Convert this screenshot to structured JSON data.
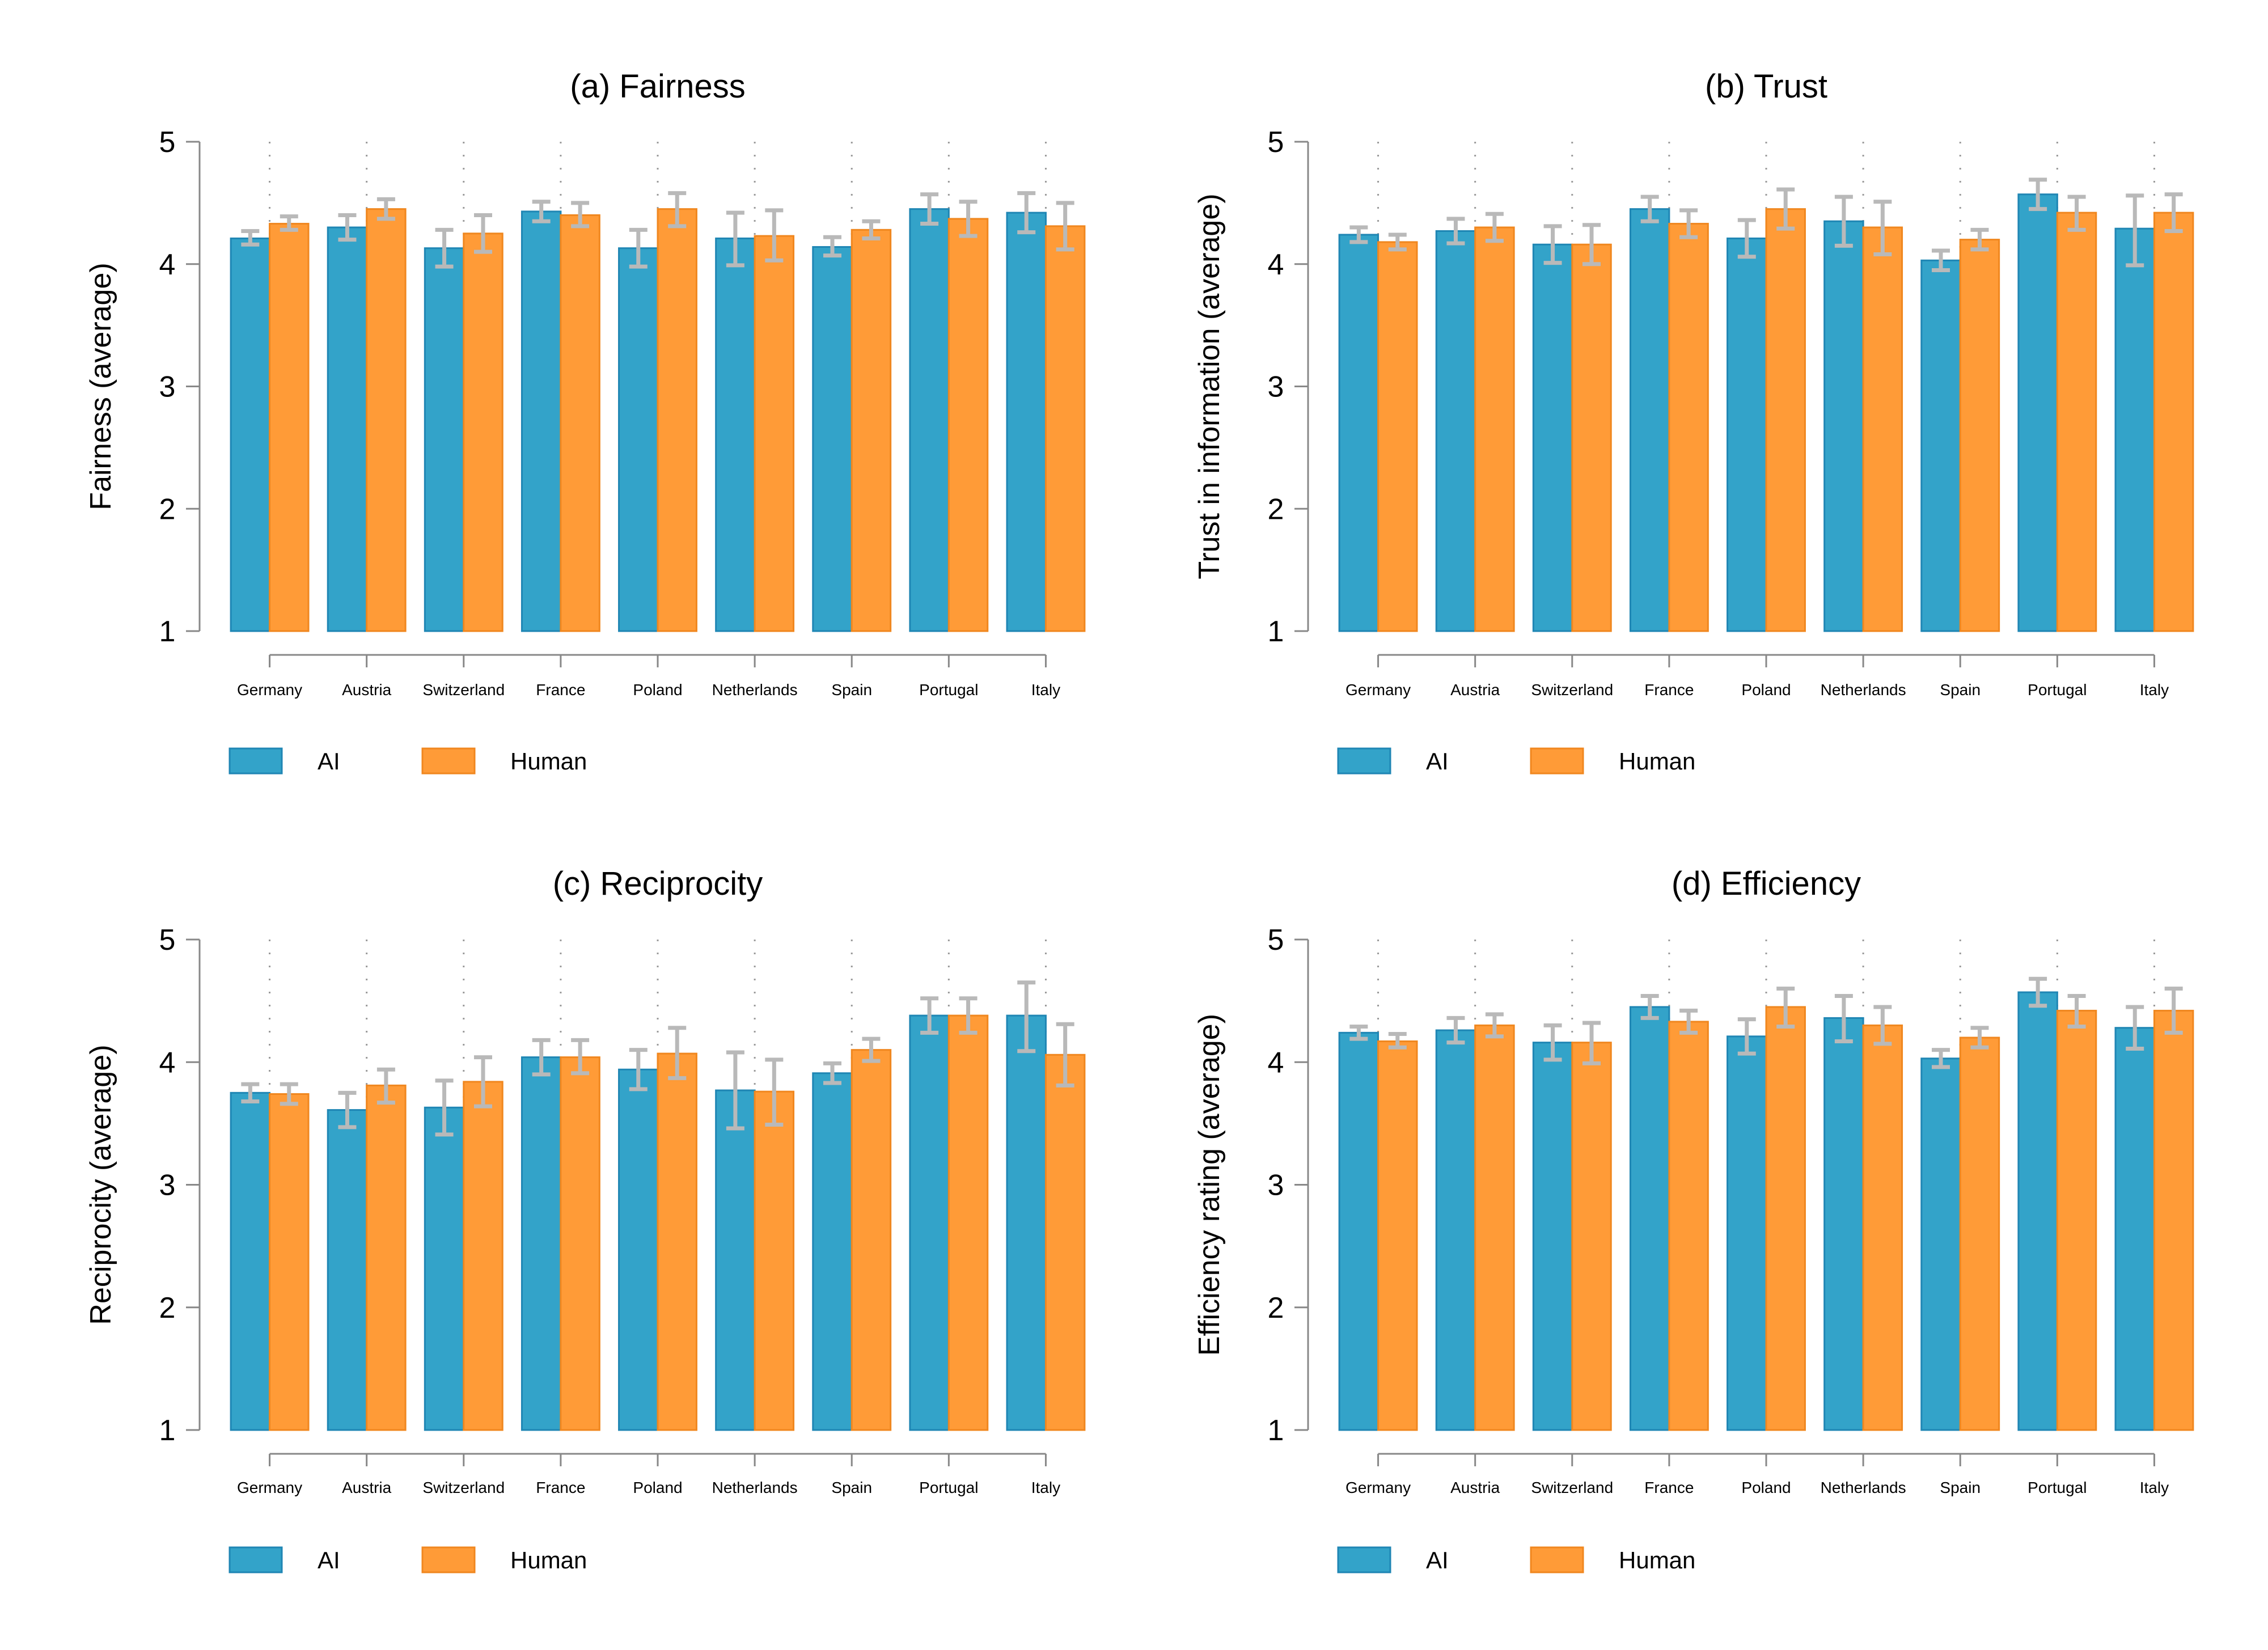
{
  "colors": {
    "ai": "#33a3c9",
    "ai_edge": "#1f86b4",
    "human": "#ff9b37",
    "human_edge": "#f0871f",
    "error": "#b9b9b9",
    "axis": "#888888"
  },
  "chart_data": [
    {
      "type": "bar",
      "title": "(a) Fairness",
      "ylabel": "Fairness (average)",
      "xlabel": "",
      "ylim": [
        1,
        5
      ],
      "yticks": [
        1,
        2,
        3,
        4,
        5
      ],
      "categories": [
        "Germany",
        "Austria",
        "Switzerland",
        "France",
        "Poland",
        "Netherlands",
        "Spain",
        "Portugal",
        "Italy"
      ],
      "series": [
        {
          "name": "AI",
          "values": [
            4.21,
            4.3,
            4.13,
            4.43,
            4.13,
            4.21,
            4.14,
            4.45,
            4.42
          ],
          "err_low": [
            4.16,
            4.2,
            3.98,
            4.35,
            3.98,
            3.99,
            4.07,
            4.33,
            4.26
          ],
          "err_high": [
            4.27,
            4.4,
            4.28,
            4.51,
            4.28,
            4.42,
            4.22,
            4.57,
            4.58
          ]
        },
        {
          "name": "Human",
          "values": [
            4.33,
            4.45,
            4.25,
            4.4,
            4.45,
            4.23,
            4.28,
            4.37,
            4.31
          ],
          "err_low": [
            4.28,
            4.37,
            4.1,
            4.31,
            4.31,
            4.03,
            4.21,
            4.23,
            4.12
          ],
          "err_high": [
            4.39,
            4.53,
            4.4,
            4.5,
            4.58,
            4.44,
            4.35,
            4.51,
            4.5
          ]
        }
      ],
      "legend": [
        "AI",
        "Human"
      ]
    },
    {
      "type": "bar",
      "title": "(b) Trust",
      "ylabel": "Trust in information (average)",
      "xlabel": "",
      "ylim": [
        1,
        5
      ],
      "yticks": [
        1,
        2,
        3,
        4,
        5
      ],
      "categories": [
        "Germany",
        "Austria",
        "Switzerland",
        "France",
        "Poland",
        "Netherlands",
        "Spain",
        "Portugal",
        "Italy"
      ],
      "series": [
        {
          "name": "AI",
          "values": [
            4.24,
            4.27,
            4.16,
            4.45,
            4.21,
            4.35,
            4.03,
            4.57,
            4.29
          ],
          "err_low": [
            4.18,
            4.17,
            4.01,
            4.35,
            4.06,
            4.15,
            3.95,
            4.45,
            3.99
          ],
          "err_high": [
            4.3,
            4.37,
            4.31,
            4.55,
            4.36,
            4.55,
            4.11,
            4.69,
            4.56
          ]
        },
        {
          "name": "Human",
          "values": [
            4.18,
            4.3,
            4.16,
            4.33,
            4.45,
            4.3,
            4.2,
            4.42,
            4.42
          ],
          "err_low": [
            4.12,
            4.19,
            4.0,
            4.22,
            4.29,
            4.08,
            4.12,
            4.28,
            4.27
          ],
          "err_high": [
            4.24,
            4.41,
            4.32,
            4.44,
            4.61,
            4.51,
            4.28,
            4.55,
            4.57
          ]
        }
      ],
      "legend": [
        "AI",
        "Human"
      ]
    },
    {
      "type": "bar",
      "title": "(c) Reciprocity",
      "ylabel": "Reciprocity (average)",
      "xlabel": "",
      "ylim": [
        1,
        5
      ],
      "yticks": [
        1,
        2,
        3,
        4,
        5
      ],
      "categories": [
        "Germany",
        "Austria",
        "Switzerland",
        "France",
        "Poland",
        "Netherlands",
        "Spain",
        "Portugal",
        "Italy"
      ],
      "series": [
        {
          "name": "AI",
          "values": [
            3.75,
            3.61,
            3.63,
            4.04,
            3.94,
            3.77,
            3.91,
            4.38,
            4.38
          ],
          "err_low": [
            3.68,
            3.47,
            3.41,
            3.9,
            3.78,
            3.46,
            3.83,
            4.24,
            4.09
          ],
          "err_high": [
            3.82,
            3.75,
            3.85,
            4.18,
            4.1,
            4.08,
            3.99,
            4.52,
            4.65
          ]
        },
        {
          "name": "Human",
          "values": [
            3.74,
            3.81,
            3.84,
            4.04,
            4.07,
            3.76,
            4.1,
            4.38,
            4.06
          ],
          "err_low": [
            3.66,
            3.67,
            3.64,
            3.91,
            3.87,
            3.49,
            4.01,
            4.24,
            3.81
          ],
          "err_high": [
            3.82,
            3.94,
            4.04,
            4.18,
            4.28,
            4.02,
            4.19,
            4.52,
            4.31
          ]
        }
      ],
      "legend": [
        "AI",
        "Human"
      ]
    },
    {
      "type": "bar",
      "title": "(d) Efficiency",
      "ylabel": "Efficiency rating (average)",
      "xlabel": "",
      "ylim": [
        1,
        5
      ],
      "yticks": [
        1,
        2,
        3,
        4,
        5
      ],
      "categories": [
        "Germany",
        "Austria",
        "Switzerland",
        "France",
        "Poland",
        "Netherlands",
        "Spain",
        "Portugal",
        "Italy"
      ],
      "series": [
        {
          "name": "AI",
          "values": [
            4.24,
            4.26,
            4.16,
            4.45,
            4.21,
            4.36,
            4.03,
            4.57,
            4.28
          ],
          "err_low": [
            4.19,
            4.16,
            4.02,
            4.36,
            4.07,
            4.17,
            3.96,
            4.46,
            4.11
          ],
          "err_high": [
            4.29,
            4.36,
            4.3,
            4.54,
            4.35,
            4.54,
            4.1,
            4.68,
            4.45
          ]
        },
        {
          "name": "Human",
          "values": [
            4.17,
            4.3,
            4.16,
            4.33,
            4.45,
            4.3,
            4.2,
            4.42,
            4.42
          ],
          "err_low": [
            4.12,
            4.21,
            3.99,
            4.24,
            4.29,
            4.15,
            4.12,
            4.29,
            4.24
          ],
          "err_high": [
            4.23,
            4.39,
            4.32,
            4.42,
            4.6,
            4.45,
            4.28,
            4.54,
            4.6
          ]
        }
      ],
      "legend": [
        "AI",
        "Human"
      ]
    }
  ]
}
